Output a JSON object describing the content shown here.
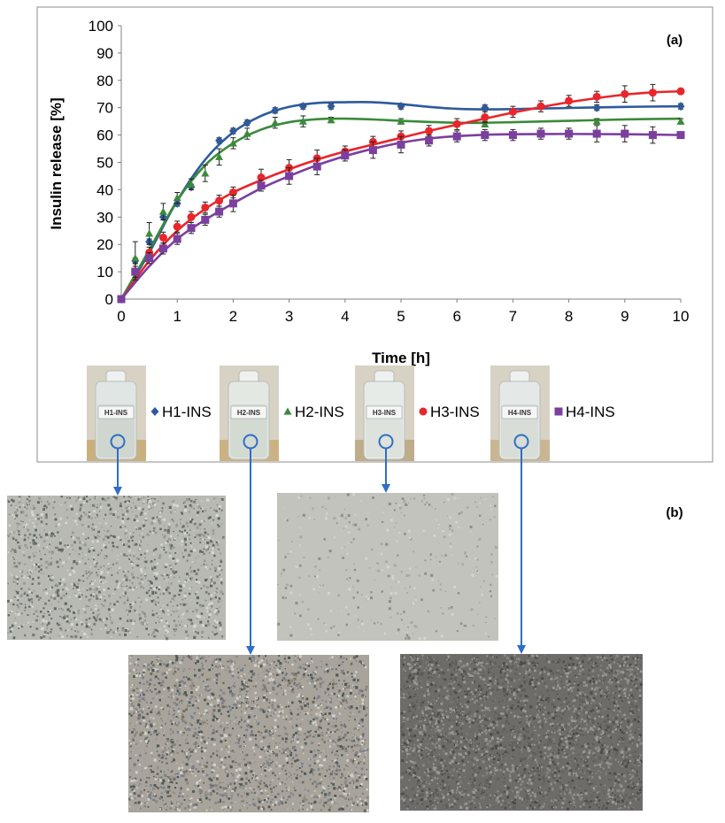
{
  "panel_a_label": "(a)",
  "panel_b_label": "(b)",
  "chart_data": {
    "type": "scatter",
    "xlabel": "Time [h]",
    "ylabel": "Insulin release [%]",
    "xlim": [
      0,
      10
    ],
    "ylim": [
      0,
      100
    ],
    "xticks": [
      0,
      1,
      2,
      3,
      4,
      5,
      6,
      7,
      8,
      9,
      10
    ],
    "yticks": [
      0,
      10,
      20,
      30,
      40,
      50,
      60,
      70,
      80,
      90,
      100
    ],
    "grid": false,
    "legend_position": "bottom",
    "series": [
      {
        "name": "H1-INS",
        "color": "#2e5a9c",
        "marker": "diamond",
        "points": [
          {
            "x": 0,
            "y": 0,
            "err": 0
          },
          {
            "x": 0.25,
            "y": 14,
            "err": 1
          },
          {
            "x": 0.5,
            "y": 21,
            "err": 1
          },
          {
            "x": 0.75,
            "y": 30,
            "err": 1
          },
          {
            "x": 1,
            "y": 35,
            "err": 1
          },
          {
            "x": 1.25,
            "y": 41,
            "err": 1
          },
          {
            "x": 1.75,
            "y": 58,
            "err": 1
          },
          {
            "x": 2,
            "y": 61.5,
            "err": 1
          },
          {
            "x": 2.25,
            "y": 64.5,
            "err": 1
          },
          {
            "x": 2.75,
            "y": 69,
            "err": 1
          },
          {
            "x": 3.25,
            "y": 70.5,
            "err": 1
          },
          {
            "x": 3.75,
            "y": 70.5,
            "err": 1
          },
          {
            "x": 5,
            "y": 70.5,
            "err": 1
          },
          {
            "x": 6.5,
            "y": 70,
            "err": 1
          },
          {
            "x": 8.5,
            "y": 70,
            "err": 1
          },
          {
            "x": 10,
            "y": 70.5,
            "err": 1
          }
        ],
        "curve": [
          [
            0,
            0
          ],
          [
            0.5,
            17
          ],
          [
            1,
            36
          ],
          [
            1.5,
            51
          ],
          [
            2,
            61
          ],
          [
            2.5,
            67
          ],
          [
            3,
            70.3
          ],
          [
            3.5,
            71.7
          ],
          [
            4,
            72
          ],
          [
            4.5,
            72
          ],
          [
            5,
            71.3
          ],
          [
            5.5,
            70.3
          ],
          [
            6,
            69.6
          ],
          [
            6.5,
            69.4
          ],
          [
            7,
            69.5
          ],
          [
            8,
            69.9
          ],
          [
            9,
            70.3
          ],
          [
            10,
            70.5
          ]
        ]
      },
      {
        "name": "H2-INS",
        "color": "#3a8a3a",
        "marker": "triangle",
        "points": [
          {
            "x": 0,
            "y": 0,
            "err": 0
          },
          {
            "x": 0.25,
            "y": 15,
            "err": 6
          },
          {
            "x": 0.5,
            "y": 24,
            "err": 4
          },
          {
            "x": 0.75,
            "y": 32,
            "err": 3
          },
          {
            "x": 1,
            "y": 37,
            "err": 2
          },
          {
            "x": 1.25,
            "y": 42,
            "err": 2
          },
          {
            "x": 1.5,
            "y": 46,
            "err": 3
          },
          {
            "x": 1.75,
            "y": 52,
            "err": 3
          },
          {
            "x": 2,
            "y": 57,
            "err": 2
          },
          {
            "x": 2.25,
            "y": 60.5,
            "err": 2
          },
          {
            "x": 2.75,
            "y": 64.5,
            "err": 2
          },
          {
            "x": 3.25,
            "y": 65,
            "err": 2
          },
          {
            "x": 3.75,
            "y": 65.5,
            "err": 1
          },
          {
            "x": 5,
            "y": 65,
            "err": 1
          },
          {
            "x": 6.5,
            "y": 64,
            "err": 1
          },
          {
            "x": 8.5,
            "y": 65,
            "err": 1
          },
          {
            "x": 10,
            "y": 65,
            "err": 1
          }
        ],
        "curve": [
          [
            0,
            0
          ],
          [
            0.5,
            18
          ],
          [
            1,
            36
          ],
          [
            1.5,
            49
          ],
          [
            2,
            57
          ],
          [
            2.5,
            62
          ],
          [
            3,
            64.7
          ],
          [
            3.5,
            65.8
          ],
          [
            4,
            66
          ],
          [
            4.5,
            65.7
          ],
          [
            5,
            65.2
          ],
          [
            5.5,
            64.8
          ],
          [
            6,
            64.5
          ],
          [
            6.5,
            64.5
          ],
          [
            7,
            64.7
          ],
          [
            8,
            65.2
          ],
          [
            9,
            65.7
          ],
          [
            10,
            66
          ]
        ]
      },
      {
        "name": "H3-INS",
        "color": "#e8262b",
        "marker": "circle",
        "points": [
          {
            "x": 0,
            "y": 0,
            "err": 0
          },
          {
            "x": 0.25,
            "y": 10,
            "err": 2
          },
          {
            "x": 0.5,
            "y": 17,
            "err": 2
          },
          {
            "x": 0.75,
            "y": 22.5,
            "err": 2
          },
          {
            "x": 1,
            "y": 26.5,
            "err": 2
          },
          {
            "x": 1.25,
            "y": 30,
            "err": 2
          },
          {
            "x": 1.5,
            "y": 33.5,
            "err": 2
          },
          {
            "x": 1.75,
            "y": 36,
            "err": 2
          },
          {
            "x": 2,
            "y": 39,
            "err": 2
          },
          {
            "x": 2.5,
            "y": 44.5,
            "err": 3
          },
          {
            "x": 3,
            "y": 48,
            "err": 3
          },
          {
            "x": 3.5,
            "y": 51.5,
            "err": 3
          },
          {
            "x": 4,
            "y": 54,
            "err": 2
          },
          {
            "x": 4.5,
            "y": 57.5,
            "err": 2
          },
          {
            "x": 5,
            "y": 59.5,
            "err": 2
          },
          {
            "x": 5.5,
            "y": 61.5,
            "err": 2
          },
          {
            "x": 6,
            "y": 64,
            "err": 2
          },
          {
            "x": 6.5,
            "y": 66.5,
            "err": 2
          },
          {
            "x": 7,
            "y": 68.5,
            "err": 2
          },
          {
            "x": 7.5,
            "y": 70.5,
            "err": 2
          },
          {
            "x": 8,
            "y": 72.5,
            "err": 2
          },
          {
            "x": 8.5,
            "y": 74,
            "err": 2
          },
          {
            "x": 9,
            "y": 75,
            "err": 3
          },
          {
            "x": 9.5,
            "y": 75.5,
            "err": 3
          },
          {
            "x": 10,
            "y": 76,
            "err": 1
          }
        ],
        "curve": [
          [
            0,
            0
          ],
          [
            0.5,
            14
          ],
          [
            1,
            25
          ],
          [
            1.5,
            33
          ],
          [
            2,
            39
          ],
          [
            2.5,
            43.5
          ],
          [
            3,
            47.5
          ],
          [
            3.5,
            51
          ],
          [
            4,
            54
          ],
          [
            4.5,
            56.5
          ],
          [
            5,
            59
          ],
          [
            5.5,
            61.5
          ],
          [
            6,
            63.8
          ],
          [
            6.5,
            66
          ],
          [
            7,
            68.2
          ],
          [
            7.5,
            70.2
          ],
          [
            8,
            72
          ],
          [
            8.5,
            73.5
          ],
          [
            9,
            74.8
          ],
          [
            9.5,
            75.6
          ],
          [
            10,
            76
          ]
        ]
      },
      {
        "name": "H4-INS",
        "color": "#7b3f9e",
        "marker": "square",
        "points": [
          {
            "x": 0,
            "y": 0,
            "err": 0
          },
          {
            "x": 0.25,
            "y": 10,
            "err": 3
          },
          {
            "x": 0.5,
            "y": 15,
            "err": 2
          },
          {
            "x": 0.75,
            "y": 18.5,
            "err": 2
          },
          {
            "x": 1,
            "y": 22,
            "err": 2
          },
          {
            "x": 1.25,
            "y": 26,
            "err": 2
          },
          {
            "x": 1.5,
            "y": 29,
            "err": 2
          },
          {
            "x": 1.75,
            "y": 32,
            "err": 2
          },
          {
            "x": 2,
            "y": 35,
            "err": 3
          },
          {
            "x": 2.5,
            "y": 41.5,
            "err": 2
          },
          {
            "x": 3,
            "y": 45,
            "err": 3
          },
          {
            "x": 3.5,
            "y": 48.5,
            "err": 3
          },
          {
            "x": 4,
            "y": 52.5,
            "err": 2
          },
          {
            "x": 4.5,
            "y": 54.5,
            "err": 3
          },
          {
            "x": 5,
            "y": 56.5,
            "err": 3
          },
          {
            "x": 5.5,
            "y": 58,
            "err": 2
          },
          {
            "x": 6,
            "y": 59.5,
            "err": 2
          },
          {
            "x": 6.5,
            "y": 60,
            "err": 2
          },
          {
            "x": 7,
            "y": 60,
            "err": 2
          },
          {
            "x": 7.5,
            "y": 60.5,
            "err": 2
          },
          {
            "x": 8,
            "y": 60.5,
            "err": 2
          },
          {
            "x": 8.5,
            "y": 60.5,
            "err": 3
          },
          {
            "x": 9,
            "y": 60.5,
            "err": 3
          },
          {
            "x": 9.5,
            "y": 60,
            "err": 3
          },
          {
            "x": 10,
            "y": 60,
            "err": 1
          }
        ],
        "curve": [
          [
            0,
            0
          ],
          [
            0.5,
            12
          ],
          [
            1,
            22
          ],
          [
            1.5,
            29
          ],
          [
            2,
            35
          ],
          [
            2.5,
            40.5
          ],
          [
            3,
            45
          ],
          [
            3.5,
            49
          ],
          [
            4,
            52.3
          ],
          [
            4.5,
            55
          ],
          [
            5,
            57.2
          ],
          [
            5.5,
            58.7
          ],
          [
            6,
            59.6
          ],
          [
            6.5,
            60.1
          ],
          [
            7,
            60.3
          ],
          [
            8,
            60.4
          ],
          [
            9,
            60.3
          ],
          [
            10,
            60
          ]
        ]
      }
    ]
  },
  "vials": [
    {
      "label": "H1-INS",
      "glass": "#dfe6e4",
      "liquid": "#cfd6cf",
      "sand": "#c7a86e"
    },
    {
      "label": "H2-INS",
      "glass": "#e3e8e3",
      "liquid": "#d3dad2",
      "sand": "#c9aa72"
    },
    {
      "label": "H3-INS",
      "glass": "#e7ebe8",
      "liquid": "#dde2dc",
      "sand": "#b9a27a"
    },
    {
      "label": "H4-INS",
      "glass": "#e4e8e6",
      "liquid": "#d8ddd8",
      "sand": "#c5ae84"
    }
  ],
  "micrographs": [
    {
      "name": "micrograph-h1",
      "base": "#b9b9b3",
      "speckle": [
        "#7d7d77",
        "#9a9a93",
        "#d8d8d2",
        "#5f6a64"
      ],
      "density": 0.55
    },
    {
      "name": "micrograph-h3",
      "base": "#c3c3bd",
      "speckle": [
        "#a9a9a3",
        "#8f8f89",
        "#d5d5cf"
      ],
      "density": 0.12
    },
    {
      "name": "micrograph-h2",
      "base": "#a8a49c",
      "speckle": [
        "#6f6a60",
        "#8f897f",
        "#d2d0c8",
        "#4f5a55",
        "#7c7f8c"
      ],
      "density": 0.7
    },
    {
      "name": "micrograph-h4",
      "base": "#6d6c69",
      "speckle": [
        "#4c4b48",
        "#8a8985",
        "#5f5e5b",
        "#9a9893"
      ],
      "density": 0.95
    }
  ]
}
